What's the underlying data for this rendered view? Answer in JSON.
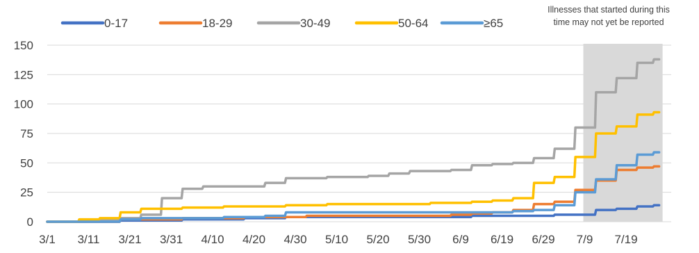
{
  "chart_data": {
    "type": "line",
    "title": "",
    "xlabel": "",
    "ylabel": "",
    "ylim": [
      0,
      150
    ],
    "y_ticks": [
      "0",
      "25",
      "50",
      "75",
      "100",
      "125",
      "150"
    ],
    "x_ticks": [
      "3/1",
      "3/11",
      "3/21",
      "3/31",
      "4/10",
      "4/20",
      "4/30",
      "5/10",
      "5/20",
      "5/30",
      "6/9",
      "6/19",
      "6/29",
      "7/9",
      "7/19"
    ],
    "grid": "horizontal",
    "legend_position": "top",
    "shaded_region": {
      "from": "7/9",
      "to": "7/27",
      "color": "#d9d9d9"
    },
    "annotation": [
      "Illnesses that started during this",
      "time may not yet be reported"
    ],
    "x": [
      "3/1",
      "3/6",
      "3/11",
      "3/16",
      "3/21",
      "3/26",
      "3/31",
      "4/5",
      "4/10",
      "4/15",
      "4/20",
      "4/25",
      "4/30",
      "5/5",
      "5/10",
      "5/15",
      "5/20",
      "5/25",
      "5/30",
      "6/4",
      "6/9",
      "6/14",
      "6/19",
      "6/24",
      "6/29",
      "7/4",
      "7/9",
      "7/14",
      "7/19",
      "7/24",
      "7/27"
    ],
    "series": [
      {
        "name": "0-17",
        "color": "#4472c4",
        "values": [
          0,
          0,
          0,
          0,
          1,
          1,
          1,
          2,
          2,
          2,
          3,
          3,
          4,
          4,
          4,
          4,
          4,
          4,
          4,
          4,
          4,
          5,
          5,
          5,
          5,
          6,
          6,
          10,
          11,
          13,
          14
        ]
      },
      {
        "name": "18-29",
        "color": "#ed7d31",
        "values": [
          0,
          0,
          0,
          0,
          2,
          2,
          2,
          3,
          3,
          3,
          4,
          4,
          4,
          5,
          5,
          5,
          5,
          5,
          5,
          5,
          6,
          7,
          8,
          10,
          15,
          17,
          27,
          35,
          44,
          46,
          47
        ]
      },
      {
        "name": "30-49",
        "color": "#a5a5a5",
        "values": [
          0,
          0,
          0,
          1,
          3,
          6,
          20,
          28,
          30,
          30,
          30,
          33,
          37,
          37,
          38,
          38,
          39,
          41,
          43,
          43,
          44,
          48,
          49,
          50,
          54,
          62,
          80,
          110,
          122,
          135,
          138
        ]
      },
      {
        "name": "50-64",
        "color": "#ffc000",
        "values": [
          0,
          0,
          2,
          3,
          8,
          11,
          11,
          12,
          12,
          13,
          13,
          13,
          14,
          14,
          15,
          15,
          15,
          15,
          15,
          16,
          16,
          17,
          18,
          20,
          33,
          38,
          55,
          75,
          81,
          91,
          93
        ]
      },
      {
        "name": "≥65",
        "color": "#5b9bd5",
        "values": [
          0,
          0,
          0,
          0,
          2,
          3,
          3,
          3,
          3,
          4,
          4,
          5,
          8,
          8,
          8,
          8,
          8,
          8,
          8,
          8,
          8,
          8,
          8,
          9,
          10,
          14,
          25,
          36,
          48,
          57,
          59
        ]
      }
    ]
  }
}
